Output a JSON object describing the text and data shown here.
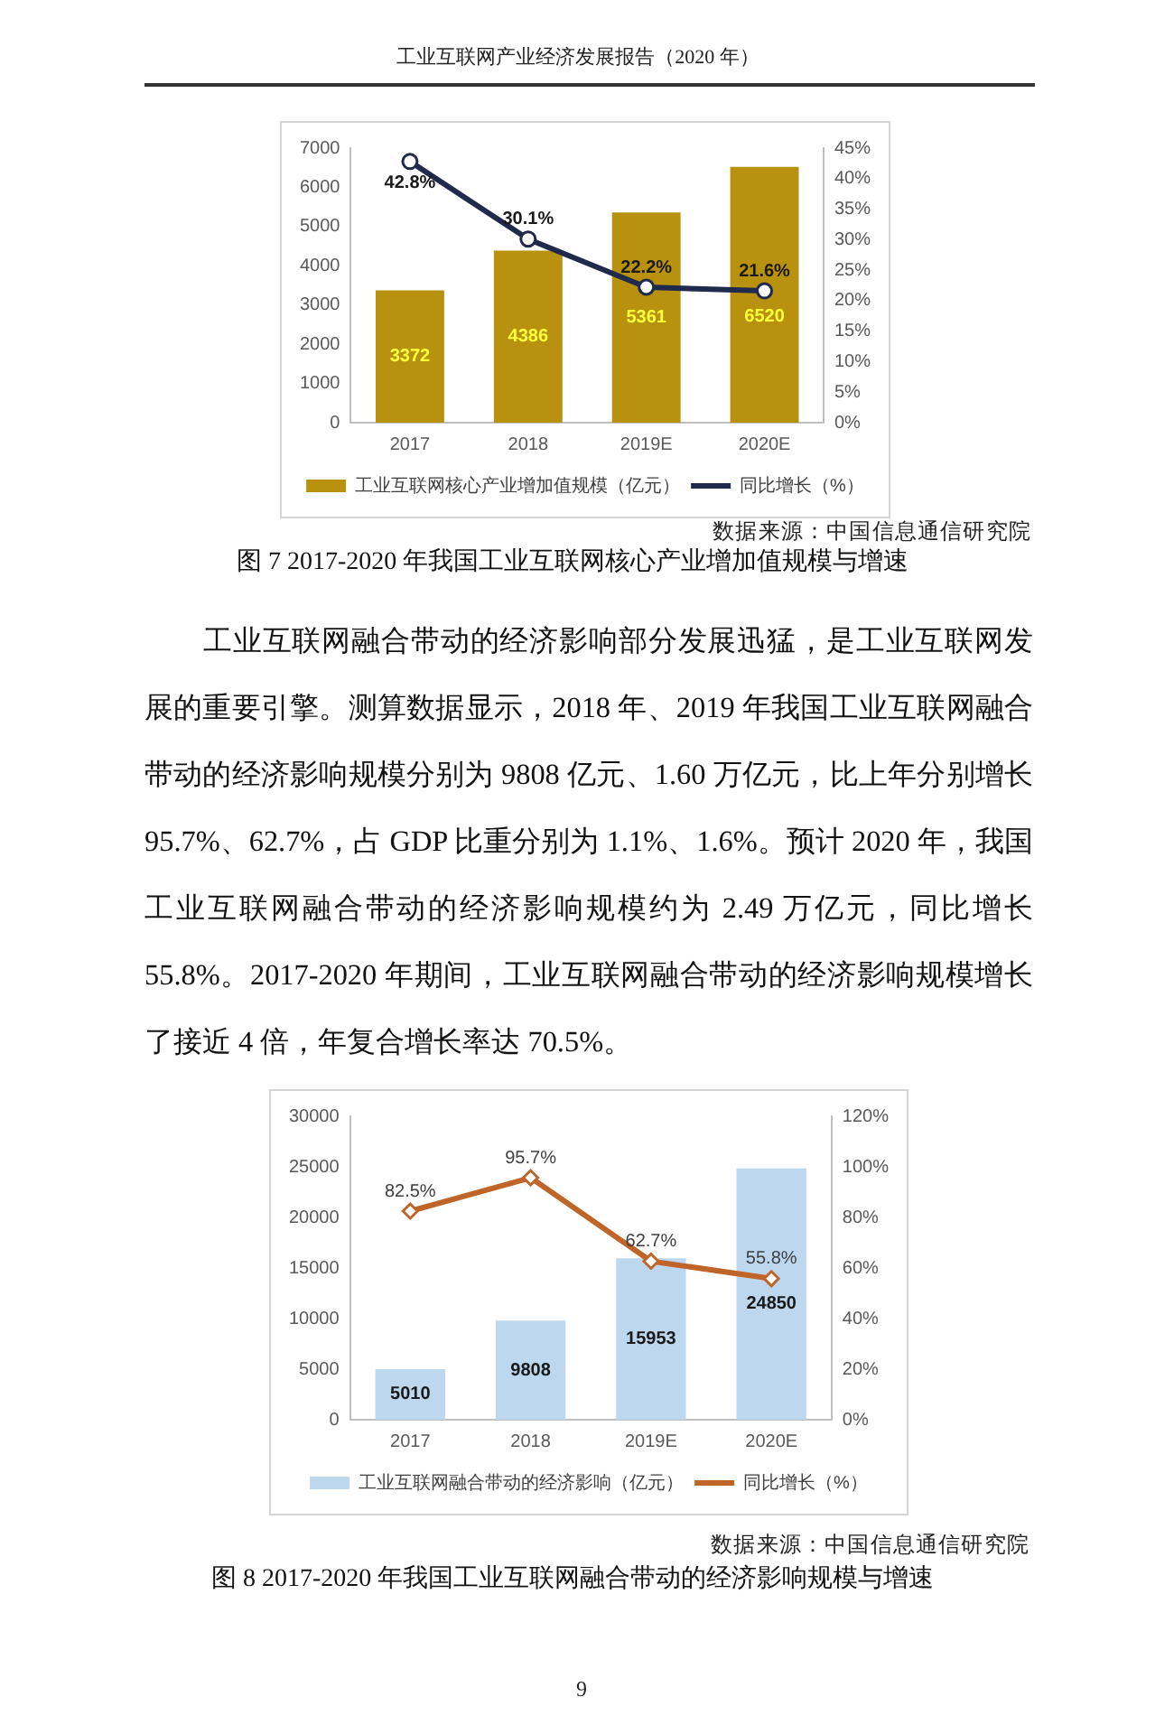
{
  "chart_data": [
    {
      "type": "bar",
      "title": "图 7 2017-2020 年我国工业互联网核心产业增加值规模与增速",
      "annotations": [
        "工业互联网产业经济发展报告（2020 年）",
        "数据来源：中国信息通信研究院"
      ],
      "categories": [
        "2017",
        "2018",
        "2019E",
        "2020E"
      ],
      "series": [
        {
          "name": "工业互联网核心产业增加值规模（亿元）",
          "color": "#b8920f",
          "values": [
            3372,
            4386,
            5361,
            6520
          ],
          "value_labels": [
            "3372",
            "4386",
            "5361",
            "6520"
          ]
        },
        {
          "name": "同比增长（%）",
          "type": "line",
          "axis": "y2",
          "color": "#1f2a4d",
          "marker": "circle",
          "values": [
            42.8,
            30.1,
            22.2,
            21.6
          ],
          "value_labels": [
            "42.8%",
            "30.1%",
            "22.2%",
            "21.6%"
          ]
        }
      ],
      "ylim": [
        0,
        7000
      ],
      "yticks": [
        0,
        1000,
        2000,
        3000,
        4000,
        5000,
        6000,
        7000
      ],
      "y2lim": [
        0,
        45
      ],
      "y2ticks": [
        {
          "value": 0,
          "label": "0%"
        },
        {
          "value": 5,
          "label": "5%"
        },
        {
          "value": 10,
          "label": "10%"
        },
        {
          "value": 15,
          "label": "15%"
        },
        {
          "value": 20,
          "label": "20%"
        },
        {
          "value": 25,
          "label": "25%"
        },
        {
          "value": 30,
          "label": "30%"
        },
        {
          "value": 35,
          "label": "35%"
        },
        {
          "value": 40,
          "label": "40%"
        },
        {
          "value": 45,
          "label": "45%"
        }
      ],
      "legend": "bottom"
    },
    {
      "type": "bar",
      "title": "图 8 2017-2020 年我国工业互联网融合带动的经济影响规模与增速",
      "annotations": [
        "工业互联网融合带动的经济影响部分发展迅猛，是工业互联网发展的重要引擎。测算数据显示，2018 年、2019 年我国工业互联网融合带动的经济影响规模分别为 9808 亿元、1.60 万亿元，比上年分别增长 95.7%、62.7%，占 GDP 比重分别为 1.1%、1.6%。预计 2020 年，我国工业互联网融合带动的经济影响规模约为 2.49 万亿元，同比增长 55.8%。2017-2020 年期间，工业互联网融合带动的经济影响规模增长了接近 4 倍，年复合增长率达 70.5%。",
        "数据来源：中国信息通信研究院",
        "9"
      ],
      "categories": [
        "2017",
        "2018",
        "2019E",
        "2020E"
      ],
      "series": [
        {
          "name": "工业互联网融合带动的经济影响（亿元）",
          "color": "#bdd7ee",
          "values": [
            5010,
            9808,
            15953,
            24850
          ],
          "value_labels": [
            "5010",
            "9808",
            "15953",
            "24850"
          ]
        },
        {
          "name": "同比增长（%）",
          "type": "line",
          "axis": "y2",
          "color": "#c0652a",
          "marker": "diamond",
          "values": [
            82.5,
            95.7,
            62.7,
            55.8
          ],
          "value_labels": [
            "82.5%",
            "95.7%",
            "62.7%",
            "55.8%"
          ]
        }
      ],
      "ylim": [
        0,
        30000
      ],
      "yticks": [
        0,
        5000,
        10000,
        15000,
        20000,
        25000,
        30000
      ],
      "y2lim": [
        0,
        120
      ],
      "y2ticks": [
        {
          "value": 0,
          "label": "0%"
        },
        {
          "value": 20,
          "label": "20%"
        },
        {
          "value": 40,
          "label": "40%"
        },
        {
          "value": 60,
          "label": "60%"
        },
        {
          "value": 80,
          "label": "80%"
        },
        {
          "value": 100,
          "label": "100%"
        },
        {
          "value": 120,
          "label": "120%"
        }
      ],
      "legend": "bottom"
    }
  ]
}
